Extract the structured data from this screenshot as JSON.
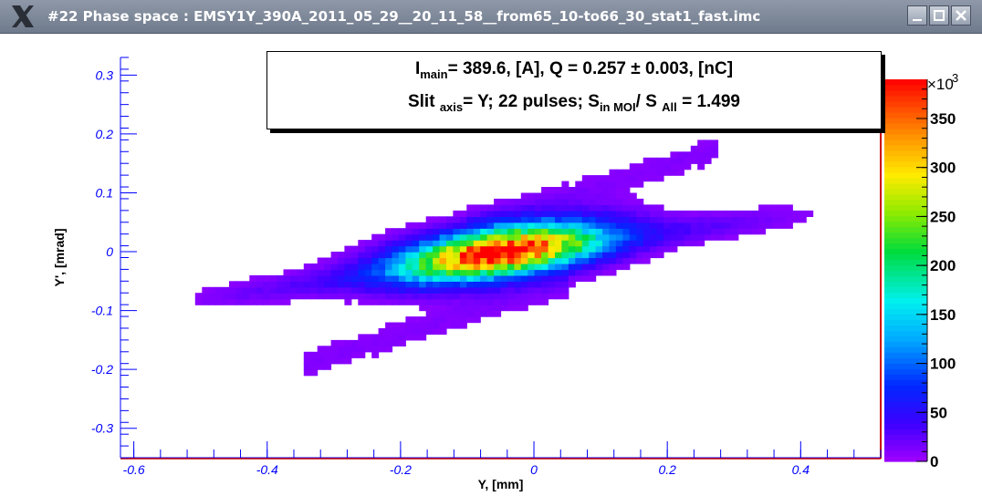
{
  "window": {
    "title": "#22 Phase space : EMSY1Y_390A_2011_05_29__20_11_58__from65_10-to66_30_stat1_fast.imc",
    "logo_icon": "x-logo-icon",
    "buttons": [
      "minimize-icon",
      "maximize-icon",
      "close-icon"
    ]
  },
  "stats": {
    "line1": {
      "i_label": "I",
      "i_sub": "main",
      "i_rest": "= 389.6, [A],  Q = 0.257   ± 0.003, [nC]"
    },
    "line2": {
      "slit_label": "Slit ",
      "slit_sub": "axis",
      "slit_rest": "= Y;   22 pulses;    S",
      "s_in_sub": "in MOI",
      "s_mid": "/ S ",
      "s_all_sub": "All",
      "s_rest": " =  1.499"
    }
  },
  "chart_data": {
    "type": "heatmap",
    "xlabel": "Y, [mm]",
    "ylabel": "Y', [mrad]",
    "xlim": [
      -0.62,
      0.52
    ],
    "ylim": [
      -0.35,
      0.33
    ],
    "xticks": [
      "-0.6",
      "-0.4",
      "-0.2",
      "0",
      "0.2",
      "0.4"
    ],
    "xtick_values": [
      -0.6,
      -0.4,
      -0.2,
      0,
      0.2,
      0.4
    ],
    "yticks": [
      "0.3",
      "0.2",
      "0.1",
      "0",
      "-0.1",
      "-0.2",
      "-0.3"
    ],
    "ytick_values": [
      0.3,
      0.2,
      0.1,
      0,
      -0.1,
      -0.2,
      -0.3
    ],
    "colorbar": {
      "ticks": [
        "0",
        "50",
        "100",
        "150",
        "200",
        "250",
        "300",
        "350"
      ],
      "tick_values": [
        0,
        50,
        100,
        150,
        200,
        250,
        300,
        350
      ],
      "max": 390,
      "multiplier": "×10",
      "exponent": "3"
    },
    "distribution": {
      "core_center": [
        -0.05,
        0.0
      ],
      "peak": 385,
      "ellipse_slope": 0.16,
      "axis_x_sigma": 0.1,
      "axis_y_sigma": 0.028
    },
    "grid": false,
    "axis_color": "#0000ff",
    "frame_color": "#cc0000"
  }
}
